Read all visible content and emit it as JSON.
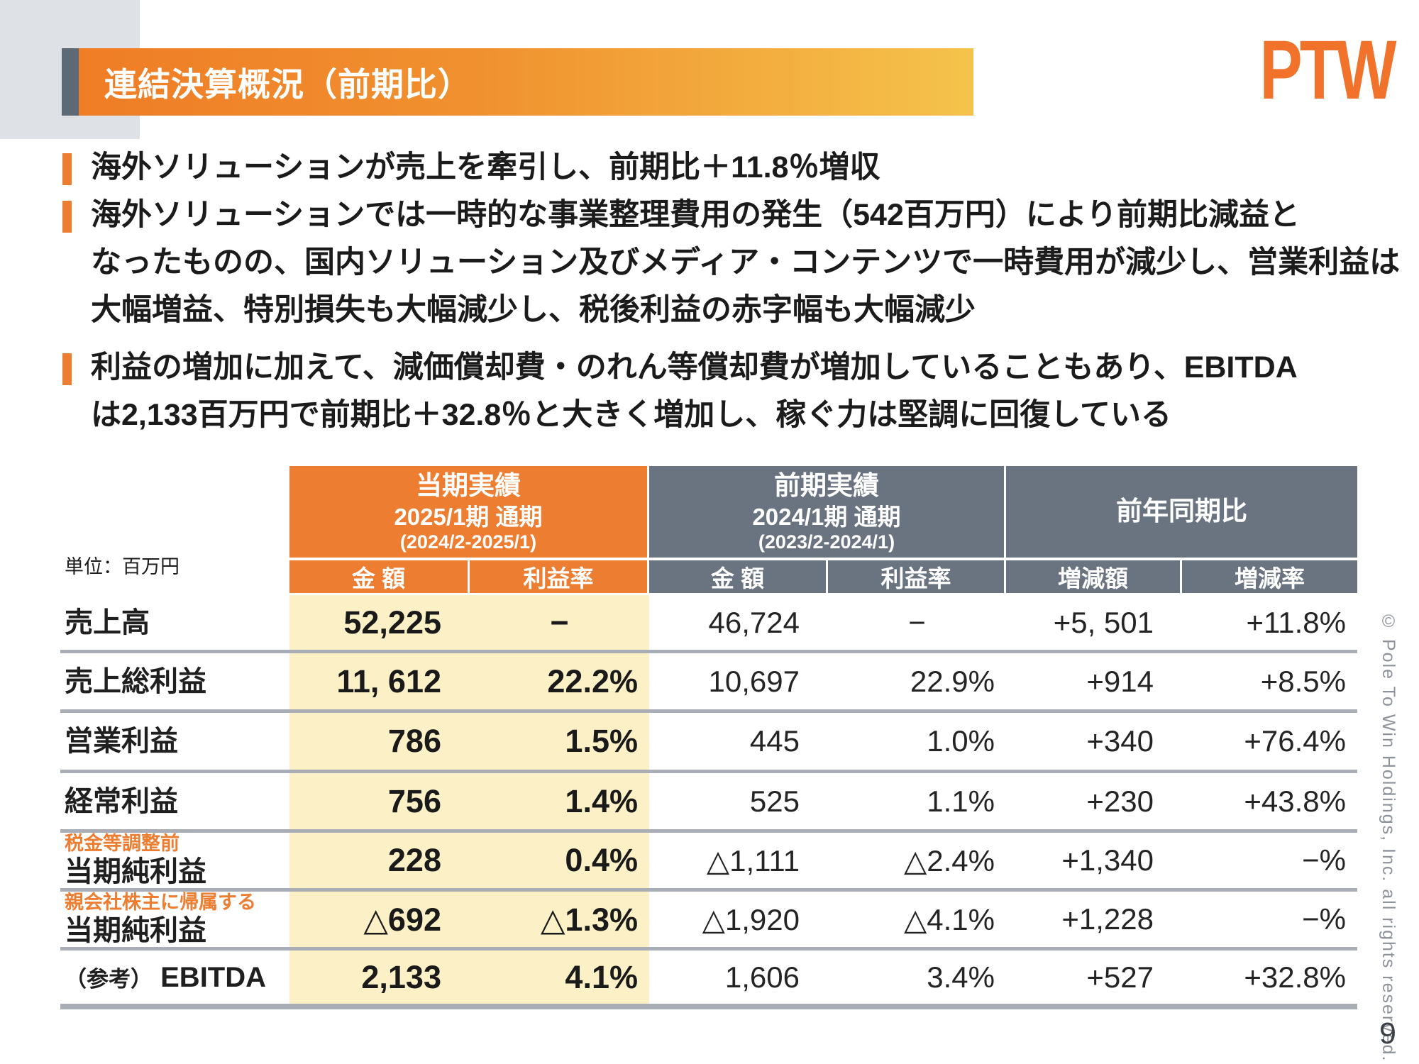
{
  "slide": {
    "title": "連結決算概況（前期比）",
    "logo": "PTW",
    "page_number": "9",
    "copyright": "© Pole To Win Holdings, Inc. all rights reserved."
  },
  "bullets": {
    "b1l1": "海外ソリューションが売上を牽引し、前期比＋11.8％増収",
    "b2l1": "海外ソリューションでは一時的な事業整理費用の発生（542百万円）により前期比減益と",
    "b2l2": "なったものの、国内ソリューション及びメディア・コンテンツで一時費用が減少し、営業利益は",
    "b2l3": "大幅増益、特別損失も大幅減少し、税後利益の赤字幅も大幅減少",
    "b3l1": "利益の増加に加えて、減価償却費・のれん等償却費が増加していることもあり、EBITDA",
    "b3l2": "は2,133百万円で前期比＋32.8％と大きく増加し、稼ぐ力は堅調に回復している"
  },
  "table": {
    "unit_label": "単位：百万円",
    "colors": {
      "accent_orange": "#ED7D31",
      "header_gray": "#6A7480",
      "highlight_yellow": "#FCF1C6"
    },
    "group_current": {
      "title": "当期実績",
      "period": "2025/1期 通期",
      "range": "(2024/2-2025/1)"
    },
    "group_previous": {
      "title": "前期実績",
      "period": "2024/1期 通期",
      "range": "(2023/2-2024/1)"
    },
    "group_yoy": {
      "title": "前年同期比"
    },
    "subheaders": {
      "amount_current": "金 額",
      "margin_current": "利益率",
      "amount_previous": "金 額",
      "margin_previous": "利益率",
      "change_amount": "増減額",
      "change_rate": "増減率"
    },
    "rows": [
      {
        "tag": "",
        "prefix": "",
        "label": "売上高",
        "values": [
          "52,225",
          "−",
          "46,724",
          "−",
          "+5, 501",
          "+11.8%"
        ]
      },
      {
        "tag": "",
        "prefix": "",
        "label": "売上総利益",
        "values": [
          "11, 612",
          "22.2%",
          "10,697",
          "22.9%",
          "+914",
          "+8.5%"
        ]
      },
      {
        "tag": "",
        "prefix": "",
        "label": "営業利益",
        "values": [
          "786",
          "1.5%",
          "445",
          "1.0%",
          "+340",
          "+76.4%"
        ]
      },
      {
        "tag": "",
        "prefix": "",
        "label": "経常利益",
        "values": [
          "756",
          "1.4%",
          "525",
          "1.1%",
          "+230",
          "+43.8%"
        ]
      },
      {
        "tag": "税金等調整前",
        "prefix": "",
        "label": "当期純利益",
        "values": [
          "228",
          "0.4%",
          "△1,111",
          "△2.4%",
          "+1,340",
          "−%"
        ]
      },
      {
        "tag": "親会社株主に帰属する",
        "prefix": "",
        "label": "当期純利益",
        "values": [
          "△692",
          "△1.3%",
          "△1,920",
          "△4.1%",
          "+1,228",
          "−%"
        ]
      },
      {
        "tag": "",
        "prefix": "（参考）",
        "label": "EBITDA",
        "values": [
          "2,133",
          "4.1%",
          "1,606",
          "3.4%",
          "+527",
          "+32.8%"
        ]
      }
    ]
  }
}
